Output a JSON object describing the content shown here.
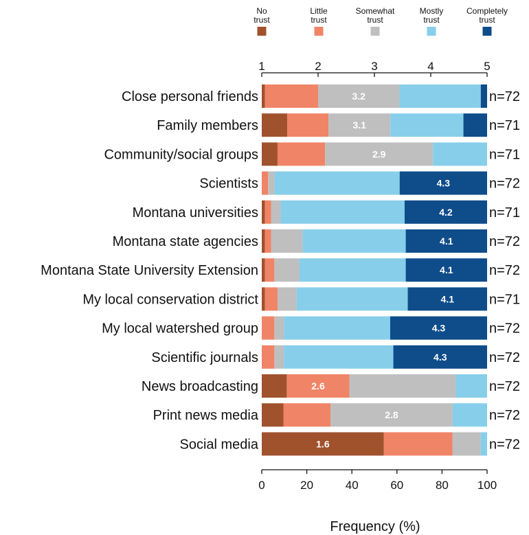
{
  "chart_data": {
    "type": "bar",
    "stacked": true,
    "orientation": "horizontal",
    "xlabel": "Frequency (%)",
    "xlim": [
      0,
      100
    ],
    "x_ticks": [
      "0",
      "20",
      "40",
      "60",
      "80",
      "100"
    ],
    "mean_scale": {
      "range": [
        1,
        5
      ],
      "ticks": [
        "1",
        "2",
        "3",
        "4",
        "5"
      ]
    },
    "legend_position": "top",
    "categories": [
      "Close personal friends",
      "Family members",
      "Community/social groups",
      "Scientists",
      "Montana universities",
      "Montana state agencies",
      "Montana State University Extension",
      "My local conservation district",
      "My local watershed group",
      "Scientific journals",
      "News broadcasting",
      "Print news media",
      "Social media"
    ],
    "n_labels": [
      "n=72",
      "n=71",
      "n=71",
      "n=72",
      "n=71",
      "n=72",
      "n=72",
      "n=71",
      "n=72",
      "n=72",
      "n=72",
      "n=72",
      "n=72"
    ],
    "means": [
      "3.2",
      "3.1",
      "2.9",
      "4.3",
      "4.2",
      "4.1",
      "4.1",
      "4.1",
      "4.3",
      "4.3",
      "2.6",
      "2.8",
      "1.6"
    ],
    "mean_label_series": [
      2,
      2,
      2,
      4,
      4,
      4,
      4,
      4,
      4,
      4,
      1,
      2,
      0
    ],
    "series": [
      {
        "name": "No\ntrust",
        "color": "#a0522d",
        "values": [
          1.4,
          11.3,
          7.0,
          0.0,
          1.4,
          1.4,
          1.4,
          1.4,
          0.0,
          0.0,
          11.1,
          9.7,
          54.2
        ]
      },
      {
        "name": "Little\ntrust",
        "color": "#f08466",
        "values": [
          23.6,
          18.3,
          21.1,
          2.8,
          2.8,
          2.8,
          4.2,
          5.6,
          5.6,
          5.6,
          27.8,
          20.8,
          30.5
        ]
      },
      {
        "name": "Somewhat\ntrust",
        "color": "#bfbfbf",
        "values": [
          36.1,
          27.5,
          47.9,
          2.8,
          4.2,
          13.9,
          11.1,
          8.5,
          4.2,
          4.2,
          47.2,
          54.2,
          12.5
        ]
      },
      {
        "name": "Mostly\ntrust",
        "color": "#87ceeb",
        "values": [
          36.1,
          32.4,
          24.0,
          55.6,
          55.0,
          45.8,
          47.2,
          49.3,
          47.2,
          48.6,
          13.9,
          15.3,
          2.8
        ]
      },
      {
        "name": "Completely\ntrust",
        "color": "#0f4c8a",
        "values": [
          2.8,
          10.5,
          0.0,
          38.8,
          36.6,
          36.1,
          36.1,
          35.2,
          43.0,
          41.6,
          0.0,
          0.0,
          0.0
        ]
      }
    ]
  }
}
